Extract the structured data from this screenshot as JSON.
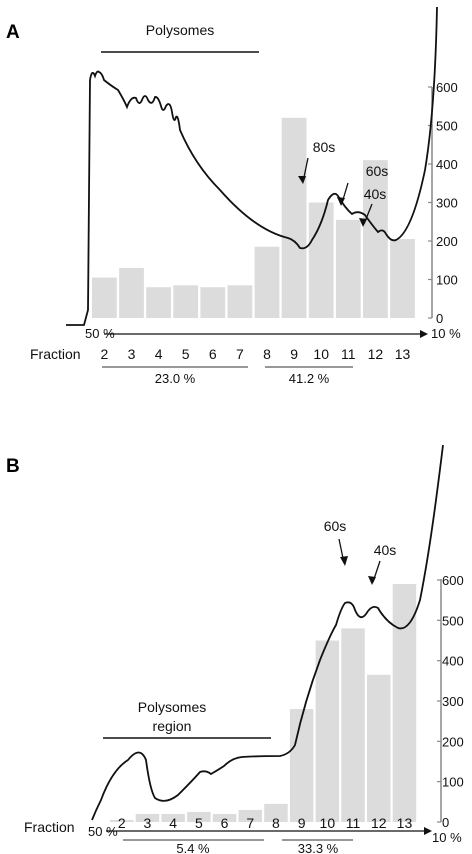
{
  "chart_data": [
    {
      "panel_label": "A",
      "type": "bar",
      "fraction_axis_label": "Fraction",
      "gradient_start": "50 %",
      "gradient_end": "10 %",
      "categories": [
        "2",
        "3",
        "4",
        "5",
        "6",
        "7",
        "8",
        "9",
        "10",
        "11",
        "12",
        "13"
      ],
      "values": [
        105,
        130,
        80,
        85,
        80,
        85,
        185,
        520,
        300,
        255,
        410,
        205
      ],
      "ylim": [
        0,
        600
      ],
      "yticks": [
        "0",
        "100",
        "200",
        "300",
        "400",
        "500",
        "600"
      ],
      "region_label": "Polysomes",
      "peak_labels": [
        "80s",
        "60s",
        "40s"
      ],
      "group_percents": [
        "23.0 %",
        "41.2 %"
      ],
      "bar_color": "#dcdcdc",
      "curve_color": "#111111"
    },
    {
      "panel_label": "B",
      "type": "bar",
      "fraction_axis_label": "Fraction",
      "gradient_start": "50 %",
      "gradient_end": "10 %",
      "categories": [
        "2",
        "3",
        "4",
        "5",
        "6",
        "7",
        "8",
        "9",
        "10",
        "11",
        "12",
        "13"
      ],
      "values": [
        5,
        20,
        20,
        25,
        20,
        30,
        45,
        280,
        450,
        480,
        365,
        590
      ],
      "ylim": [
        0,
        600
      ],
      "yticks": [
        "0",
        "100",
        "200",
        "300",
        "400",
        "500",
        "600"
      ],
      "region_label_lines": [
        "Polysomes",
        "region"
      ],
      "peak_labels": [
        "60s",
        "40s"
      ],
      "group_percents": [
        "5.4 %",
        "33.3 %"
      ],
      "bar_color": "#dcdcdc",
      "curve_color": "#111111"
    }
  ]
}
